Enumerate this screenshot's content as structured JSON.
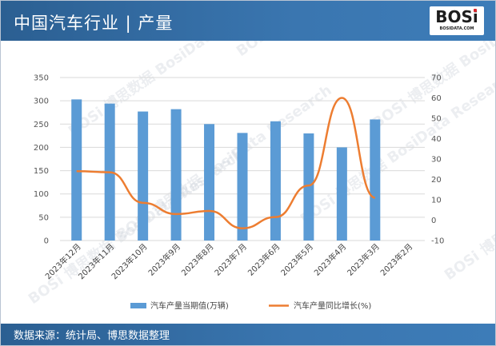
{
  "header": {
    "title": "中国汽车行业 | 产量"
  },
  "logo": {
    "mark": "BOSi",
    "sub": "BOSIDATA.COM"
  },
  "footer": {
    "source": "数据来源：统计局、博思数据整理"
  },
  "colors": {
    "header_bg": "#3a76b0",
    "bar": "#5b9bd5",
    "line": "#ed7d31",
    "grid": "#d9d9d9"
  },
  "chart_data": {
    "type": "bar",
    "categories": [
      "2023年12月",
      "2023年11月",
      "2023年10月",
      "2023年9月",
      "2023年8月",
      "2023年7月",
      "2023年6月",
      "2023年5月",
      "2023年4月",
      "2023年3月",
      "2023年2月"
    ],
    "series": [
      {
        "name": "汽车产量当期值(万辆)",
        "type": "bar",
        "axis": "left",
        "values": [
          303,
          294,
          277,
          282,
          250,
          231,
          256,
          230,
          200,
          260,
          null
        ]
      },
      {
        "name": "汽车产量同比增长(%)",
        "type": "line",
        "axis": "right",
        "values": [
          24,
          23.5,
          8.5,
          3,
          4.5,
          -4,
          1.5,
          17,
          60,
          11,
          null
        ]
      }
    ],
    "ylim": [
      0,
      350
    ],
    "yticks": [
      0,
      50,
      100,
      150,
      200,
      250,
      300,
      350
    ],
    "y2lim": [
      -10,
      70
    ],
    "y2ticks": [
      -10,
      0,
      10,
      20,
      30,
      40,
      50,
      60,
      70
    ],
    "grid": true,
    "legend": "bottom",
    "watermark": "BOSi 博思数据 BosiData Research"
  }
}
